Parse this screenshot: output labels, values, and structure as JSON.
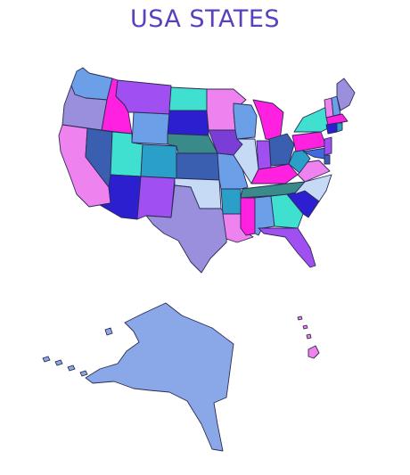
{
  "title": "USA STATES",
  "colors": {
    "title": "#5a3fc0",
    "violet": "#a04ff0",
    "cyan": "#40e0d0",
    "pink": "#ee82ee",
    "royal": "#4169e1",
    "blue": "#2c1fd0",
    "magenta": "#ff20e0",
    "slate": "#3a5fb0",
    "teal": "#2aa0c8",
    "lavender": "#9a8fdc",
    "steel": "#6ba0e8",
    "sky": "#87ceeb",
    "sea": "#3a8a8a",
    "lightblue": "#c6daf6",
    "purple": "#7a3ed6",
    "alaska": "#8aa8e8"
  }
}
